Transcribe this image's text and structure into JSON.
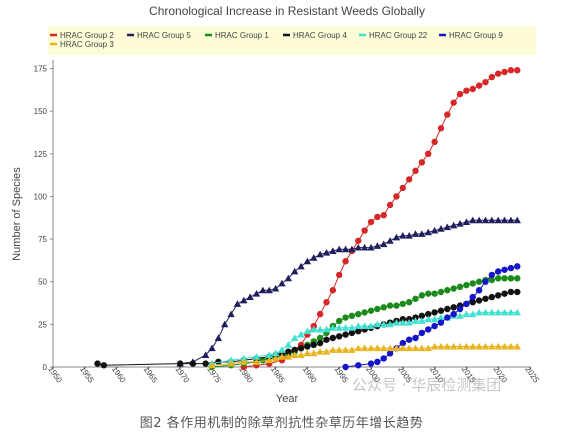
{
  "chart_data": {
    "type": "line",
    "title": "Chronological Increase in Resistant Weeds Globally",
    "xlabel": "Year",
    "ylabel": "Number of Species",
    "xlim": [
      1950,
      2025
    ],
    "ylim": [
      0,
      180
    ],
    "xticks": [
      "1950",
      "1955",
      "1960",
      "1965",
      "1970",
      "1975",
      "1980",
      "1985",
      "1990",
      "1995",
      "2000",
      "2005",
      "2010",
      "2015",
      "2020",
      "2025"
    ],
    "yticks": [
      "0",
      "25",
      "50",
      "75",
      "100",
      "125",
      "150",
      "175"
    ],
    "grid": false,
    "legend": "top",
    "series": [
      {
        "name": "HRAC Group 2",
        "color": "#d62728",
        "marker": "circle",
        "points": [
          [
            1980,
            0
          ],
          [
            1982,
            1
          ],
          [
            1984,
            2
          ],
          [
            1986,
            4
          ],
          [
            1987,
            7
          ],
          [
            1988,
            10
          ],
          [
            1989,
            13
          ],
          [
            1990,
            19
          ],
          [
            1991,
            24
          ],
          [
            1992,
            31
          ],
          [
            1993,
            38
          ],
          [
            1994,
            45
          ],
          [
            1995,
            54
          ],
          [
            1996,
            62
          ],
          [
            1997,
            68
          ],
          [
            1998,
            74
          ],
          [
            1999,
            80
          ],
          [
            2000,
            85
          ],
          [
            2001,
            88
          ],
          [
            2002,
            89
          ],
          [
            2003,
            95
          ],
          [
            2004,
            100
          ],
          [
            2005,
            105
          ],
          [
            2006,
            110
          ],
          [
            2007,
            115
          ],
          [
            2008,
            120
          ],
          [
            2009,
            125
          ],
          [
            2010,
            132
          ],
          [
            2011,
            140
          ],
          [
            2012,
            148
          ],
          [
            2013,
            155
          ],
          [
            2014,
            160
          ],
          [
            2015,
            162
          ],
          [
            2016,
            163
          ],
          [
            2017,
            165
          ],
          [
            2018,
            167
          ],
          [
            2019,
            170
          ],
          [
            2020,
            172
          ],
          [
            2021,
            173
          ],
          [
            2022,
            174
          ],
          [
            2023,
            174
          ]
        ]
      },
      {
        "name": "HRAC Group 5",
        "color": "#1f1f5e",
        "marker": "triangle",
        "points": [
          [
            1970,
            2
          ],
          [
            1972,
            3
          ],
          [
            1974,
            7
          ],
          [
            1975,
            11
          ],
          [
            1976,
            17
          ],
          [
            1977,
            25
          ],
          [
            1978,
            31
          ],
          [
            1979,
            37
          ],
          [
            1980,
            39
          ],
          [
            1981,
            41
          ],
          [
            1982,
            43
          ],
          [
            1983,
            45
          ],
          [
            1984,
            45
          ],
          [
            1985,
            46
          ],
          [
            1986,
            49
          ],
          [
            1987,
            52
          ],
          [
            1988,
            56
          ],
          [
            1989,
            59
          ],
          [
            1990,
            62
          ],
          [
            1991,
            64
          ],
          [
            1992,
            66
          ],
          [
            1993,
            67
          ],
          [
            1994,
            68
          ],
          [
            1995,
            69
          ],
          [
            1996,
            69
          ],
          [
            1997,
            69
          ],
          [
            1998,
            70
          ],
          [
            1999,
            70
          ],
          [
            2000,
            70
          ],
          [
            2001,
            71
          ],
          [
            2002,
            72
          ],
          [
            2003,
            74
          ],
          [
            2004,
            76
          ],
          [
            2005,
            77
          ],
          [
            2006,
            77
          ],
          [
            2007,
            78
          ],
          [
            2008,
            78
          ],
          [
            2009,
            79
          ],
          [
            2010,
            80
          ],
          [
            2011,
            81
          ],
          [
            2012,
            82
          ],
          [
            2013,
            83
          ],
          [
            2014,
            84
          ],
          [
            2015,
            85
          ],
          [
            2016,
            86
          ],
          [
            2017,
            86
          ],
          [
            2018,
            86
          ],
          [
            2019,
            86
          ],
          [
            2020,
            86
          ],
          [
            2021,
            86
          ],
          [
            2022,
            86
          ],
          [
            2023,
            86
          ]
        ]
      },
      {
        "name": "HRAC Group 1",
        "color": "#1a8a1a",
        "marker": "circle",
        "points": [
          [
            1975,
            0
          ],
          [
            1978,
            1
          ],
          [
            1980,
            2
          ],
          [
            1982,
            3
          ],
          [
            1983,
            4
          ],
          [
            1984,
            5
          ],
          [
            1985,
            6
          ],
          [
            1986,
            7
          ],
          [
            1987,
            8
          ],
          [
            1988,
            9
          ],
          [
            1989,
            11
          ],
          [
            1990,
            13
          ],
          [
            1991,
            15
          ],
          [
            1992,
            17
          ],
          [
            1993,
            20
          ],
          [
            1994,
            24
          ],
          [
            1995,
            27
          ],
          [
            1996,
            29
          ],
          [
            1997,
            30
          ],
          [
            1998,
            31
          ],
          [
            1999,
            32
          ],
          [
            2000,
            33
          ],
          [
            2001,
            34
          ],
          [
            2002,
            35
          ],
          [
            2003,
            36
          ],
          [
            2004,
            36
          ],
          [
            2005,
            37
          ],
          [
            2006,
            38
          ],
          [
            2007,
            40
          ],
          [
            2008,
            42
          ],
          [
            2009,
            43
          ],
          [
            2010,
            43
          ],
          [
            2011,
            44
          ],
          [
            2012,
            45
          ],
          [
            2013,
            46
          ],
          [
            2014,
            47
          ],
          [
            2015,
            48
          ],
          [
            2016,
            49
          ],
          [
            2017,
            50
          ],
          [
            2018,
            51
          ],
          [
            2019,
            51
          ],
          [
            2020,
            52
          ],
          [
            2021,
            52
          ],
          [
            2022,
            52
          ],
          [
            2023,
            52
          ]
        ]
      },
      {
        "name": "HRAC Group 4",
        "color": "#111111",
        "marker": "circle",
        "points": [
          [
            1957,
            2
          ],
          [
            1958,
            1
          ],
          [
            1970,
            2
          ],
          [
            1972,
            2
          ],
          [
            1974,
            2
          ],
          [
            1976,
            3
          ],
          [
            1978,
            3
          ],
          [
            1980,
            4
          ],
          [
            1982,
            5
          ],
          [
            1984,
            6
          ],
          [
            1985,
            7
          ],
          [
            1986,
            8
          ],
          [
            1987,
            9
          ],
          [
            1988,
            10
          ],
          [
            1989,
            11
          ],
          [
            1990,
            12
          ],
          [
            1991,
            13
          ],
          [
            1992,
            14
          ],
          [
            1993,
            16
          ],
          [
            1994,
            17
          ],
          [
            1995,
            18
          ],
          [
            1996,
            19
          ],
          [
            1997,
            20
          ],
          [
            1998,
            21
          ],
          [
            1999,
            22
          ],
          [
            2000,
            23
          ],
          [
            2001,
            24
          ],
          [
            2002,
            25
          ],
          [
            2003,
            26
          ],
          [
            2004,
            27
          ],
          [
            2005,
            28
          ],
          [
            2006,
            28
          ],
          [
            2007,
            29
          ],
          [
            2008,
            30
          ],
          [
            2009,
            31
          ],
          [
            2010,
            32
          ],
          [
            2011,
            33
          ],
          [
            2012,
            34
          ],
          [
            2013,
            35
          ],
          [
            2014,
            36
          ],
          [
            2015,
            37
          ],
          [
            2016,
            38
          ],
          [
            2017,
            39
          ],
          [
            2018,
            40
          ],
          [
            2019,
            41
          ],
          [
            2020,
            42
          ],
          [
            2021,
            43
          ],
          [
            2022,
            44
          ],
          [
            2023,
            44
          ]
        ]
      },
      {
        "name": "HRAC Group 22",
        "color": "#40e0d0",
        "marker": "triangle",
        "points": [
          [
            1975,
            2
          ],
          [
            1978,
            4
          ],
          [
            1980,
            5
          ],
          [
            1982,
            6
          ],
          [
            1984,
            7
          ],
          [
            1985,
            8
          ],
          [
            1986,
            10
          ],
          [
            1987,
            13
          ],
          [
            1988,
            17
          ],
          [
            1989,
            19
          ],
          [
            1990,
            21
          ],
          [
            1991,
            22
          ],
          [
            1992,
            22
          ],
          [
            1993,
            22
          ],
          [
            1994,
            23
          ],
          [
            1995,
            23
          ],
          [
            1996,
            23
          ],
          [
            1997,
            23
          ],
          [
            1998,
            24
          ],
          [
            1999,
            24
          ],
          [
            2000,
            24
          ],
          [
            2001,
            25
          ],
          [
            2002,
            25
          ],
          [
            2003,
            25
          ],
          [
            2004,
            26
          ],
          [
            2005,
            26
          ],
          [
            2006,
            26
          ],
          [
            2007,
            27
          ],
          [
            2008,
            27
          ],
          [
            2009,
            28
          ],
          [
            2010,
            28
          ],
          [
            2011,
            29
          ],
          [
            2012,
            29
          ],
          [
            2013,
            30
          ],
          [
            2014,
            30
          ],
          [
            2015,
            31
          ],
          [
            2016,
            31
          ],
          [
            2017,
            32
          ],
          [
            2018,
            32
          ],
          [
            2019,
            32
          ],
          [
            2020,
            32
          ],
          [
            2021,
            32
          ],
          [
            2022,
            32
          ],
          [
            2023,
            32
          ]
        ]
      },
      {
        "name": "HRAC Group 9",
        "color": "#1414c8",
        "marker": "circle",
        "points": [
          [
            1996,
            0
          ],
          [
            1998,
            1
          ],
          [
            2000,
            2
          ],
          [
            2001,
            3
          ],
          [
            2002,
            5
          ],
          [
            2003,
            8
          ],
          [
            2004,
            11
          ],
          [
            2005,
            14
          ],
          [
            2006,
            16
          ],
          [
            2007,
            17
          ],
          [
            2008,
            20
          ],
          [
            2009,
            22
          ],
          [
            2010,
            24
          ],
          [
            2011,
            26
          ],
          [
            2012,
            29
          ],
          [
            2013,
            31
          ],
          [
            2014,
            34
          ],
          [
            2015,
            37
          ],
          [
            2016,
            41
          ],
          [
            2017,
            45
          ],
          [
            2018,
            50
          ],
          [
            2019,
            54
          ],
          [
            2020,
            56
          ],
          [
            2021,
            57
          ],
          [
            2022,
            58
          ],
          [
            2023,
            59
          ]
        ]
      },
      {
        "name": "HRAC Group 3",
        "color": "#e8b41e",
        "marker": "triangle",
        "points": [
          [
            1975,
            1
          ],
          [
            1978,
            2
          ],
          [
            1980,
            3
          ],
          [
            1982,
            3
          ],
          [
            1984,
            4
          ],
          [
            1985,
            5
          ],
          [
            1986,
            6
          ],
          [
            1987,
            6
          ],
          [
            1988,
            7
          ],
          [
            1989,
            7
          ],
          [
            1990,
            8
          ],
          [
            1991,
            8
          ],
          [
            1992,
            9
          ],
          [
            1993,
            9
          ],
          [
            1994,
            10
          ],
          [
            1995,
            10
          ],
          [
            1996,
            10
          ],
          [
            1997,
            10
          ],
          [
            1998,
            11
          ],
          [
            1999,
            11
          ],
          [
            2000,
            11
          ],
          [
            2001,
            11
          ],
          [
            2002,
            11
          ],
          [
            2003,
            11
          ],
          [
            2004,
            11
          ],
          [
            2005,
            11
          ],
          [
            2006,
            11
          ],
          [
            2007,
            11
          ],
          [
            2008,
            11
          ],
          [
            2009,
            11
          ],
          [
            2010,
            12
          ],
          [
            2011,
            12
          ],
          [
            2012,
            12
          ],
          [
            2013,
            12
          ],
          [
            2014,
            12
          ],
          [
            2015,
            12
          ],
          [
            2016,
            12
          ],
          [
            2017,
            12
          ],
          [
            2018,
            12
          ],
          [
            2019,
            12
          ],
          [
            2020,
            12
          ],
          [
            2021,
            12
          ],
          [
            2022,
            12
          ],
          [
            2023,
            12
          ]
        ]
      }
    ]
  },
  "caption": "图2 各作用机制的除草剂抗性杂草历年增长趋势",
  "watermark": "公众号 · 华辰检测集团"
}
